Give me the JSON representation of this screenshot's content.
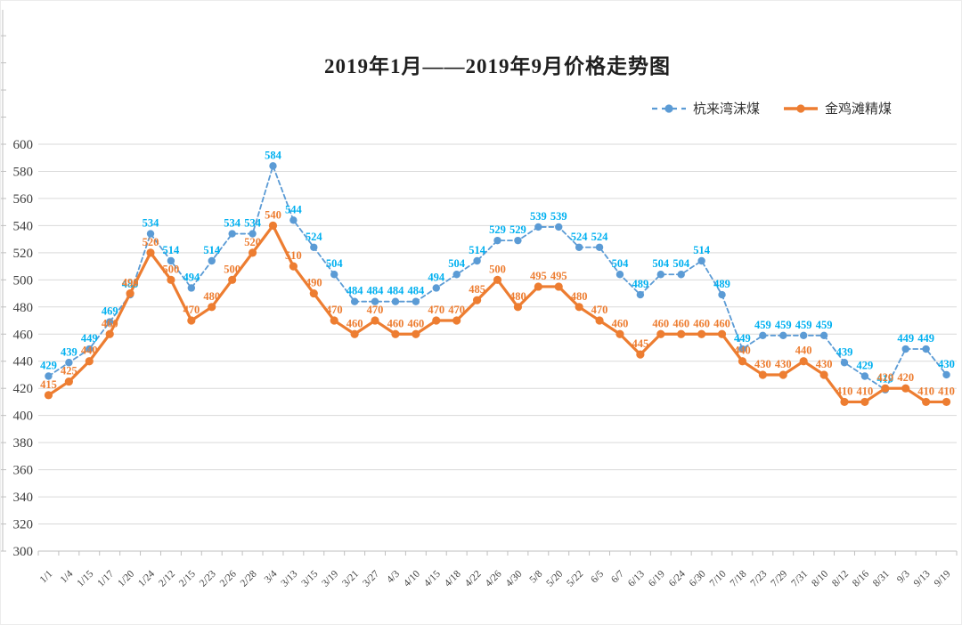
{
  "title": "2019年1月——2019年9月价格走势图",
  "legend": {
    "items": [
      {
        "label": "杭来湾沫煤",
        "series_key": "hanglaiwan"
      },
      {
        "label": "金鸡滩精煤",
        "series_key": "jinjitan"
      }
    ]
  },
  "colors": {
    "blue_line": "#5B9BD5",
    "blue_label": "#00B0F0",
    "orange_line": "#ED7D31",
    "orange_label": "#ED7D31",
    "gridline": "#D9D9D9",
    "axis": "#BFBFBF",
    "axis_text": "#404040",
    "title_text": "#1F1F1F"
  },
  "chart_data": {
    "type": "line",
    "title": "2019年1月——2019年9月价格走势图",
    "xlabel": "",
    "ylabel": "",
    "ylim": [
      300,
      600
    ],
    "ytick_step": 20,
    "yticks": [
      300,
      320,
      340,
      360,
      380,
      400,
      420,
      440,
      460,
      480,
      500,
      520,
      540,
      560,
      580,
      600
    ],
    "grid": true,
    "legend_position": "top-right",
    "data_labels": true,
    "categories": [
      "1/1",
      "1/4",
      "1/15",
      "1/17",
      "1/20",
      "1/24",
      "2/12",
      "2/15",
      "2/23",
      "2/26",
      "2/28",
      "3/4",
      "3/13",
      "3/15",
      "3/19",
      "3/21",
      "3/27",
      "4/3",
      "4/10",
      "4/15",
      "4/18",
      "4/22",
      "4/26",
      "4/30",
      "5/8",
      "5/20",
      "5/22",
      "6/5",
      "6/7",
      "6/13",
      "6/19",
      "6/24",
      "6/30",
      "7/10",
      "7/18",
      "7/23",
      "7/29",
      "7/31",
      "8/10",
      "8/12",
      "8/16",
      "8/31",
      "9/3",
      "9/13",
      "9/19"
    ],
    "series": [
      {
        "name": "杭来湾沫煤",
        "key": "hanglaiwan",
        "style": "dashed",
        "marker": "circle",
        "line_color": "#5B9BD5",
        "label_color": "#00B0F0",
        "values": [
          429,
          439,
          449,
          469,
          489,
          534,
          514,
          494,
          514,
          534,
          534,
          584,
          544,
          524,
          504,
          484,
          484,
          484,
          484,
          494,
          504,
          514,
          529,
          529,
          539,
          539,
          524,
          524,
          504,
          489,
          504,
          504,
          514,
          489,
          449,
          459,
          459,
          459,
          459,
          439,
          429,
          419,
          449,
          449,
          430
        ]
      },
      {
        "name": "金鸡滩精煤",
        "key": "jinjitan",
        "style": "solid",
        "marker": "circle",
        "line_color": "#ED7D31",
        "label_color": "#ED7D31",
        "values": [
          415,
          425,
          440,
          460,
          490,
          520,
          500,
          470,
          480,
          500,
          520,
          540,
          510,
          490,
          470,
          460,
          470,
          460,
          460,
          470,
          470,
          485,
          500,
          480,
          495,
          495,
          480,
          470,
          460,
          445,
          460,
          460,
          460,
          460,
          440,
          430,
          430,
          440,
          430,
          410,
          410,
          420,
          420,
          410,
          410
        ]
      }
    ]
  }
}
